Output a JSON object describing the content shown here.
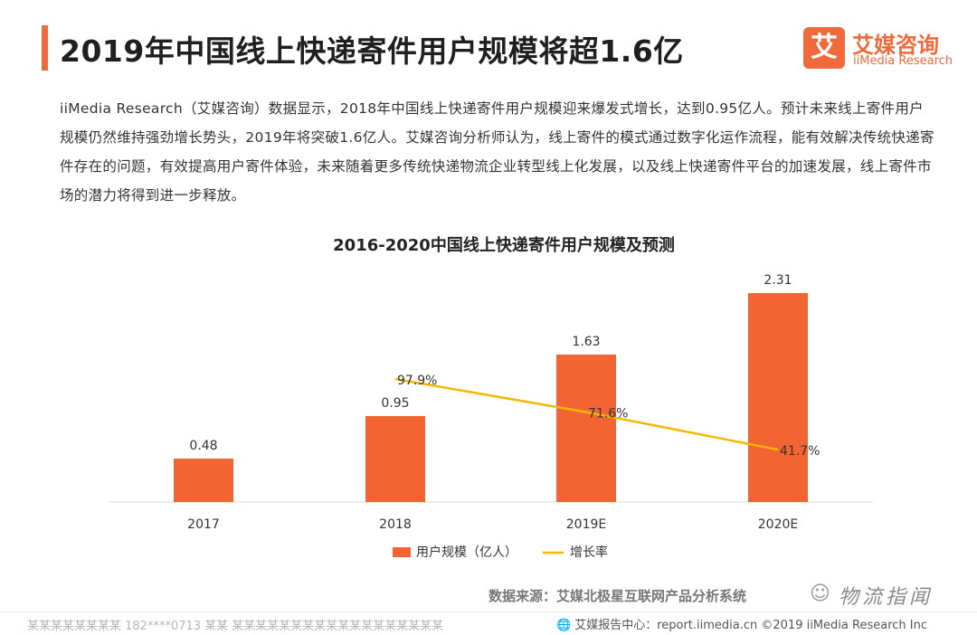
{
  "header": {
    "title": "2019年中国线上快递寄件用户规模将超1.6亿",
    "logo_box_char": "艾",
    "logo_cn": "艾媒咨询",
    "logo_en": "iiMedia Research"
  },
  "intro": "iiMedia Research（艾媒咨询）数据显示，2018年中国线上快递寄件用户规模迎来爆发式增长，达到0.95亿人。预计未来线上寄件用户规模仍然维持强劲增长势头，2019年将突破1.6亿人。艾媒咨询分析师认为，线上寄件的模式通过数字化运作流程，能有效解决传统快递寄件存在的问题，有效提高用户寄件体验，未来随着更多传统快递物流企业转型线上化发展，以及线上快递寄件平台的加速发展，线上寄件市场的潜力将得到进一步释放。",
  "chart_data": {
    "type": "bar",
    "title": "2016-2020中国线上快递寄件用户规模及预测",
    "categories": [
      "2017",
      "2018",
      "2019E",
      "2020E"
    ],
    "series": [
      {
        "name": "用户规模（亿人）",
        "type": "bar",
        "values": [
          0.48,
          0.95,
          1.63,
          2.31
        ],
        "labels": [
          "0.48",
          "0.95",
          "1.63",
          "2.31"
        ],
        "color": "#f26533"
      },
      {
        "name": "增长率",
        "type": "line",
        "values": [
          null,
          97.9,
          71.6,
          41.7
        ],
        "labels": [
          "",
          "97.9%",
          "71.6%",
          "41.7%"
        ],
        "color": "#f5b800"
      }
    ],
    "ylim": [
      0,
      2.5
    ],
    "y2lim": [
      0,
      180
    ],
    "grid": false,
    "legend": "bottom"
  },
  "source": "数据来源：艾媒北极星互联网产品分析系统",
  "watermark": "物流指闻",
  "footer": {
    "left": "某某某某某某某某 182****0713 某某 某某某某某某某某某某某某某某某某某某",
    "right": "艾媒报告中心：report.iimedia.cn ©2019 iiMedia Research Inc"
  },
  "colors": {
    "accent": "#ef6a3a",
    "bar": "#f26533",
    "line": "#f5b800"
  }
}
